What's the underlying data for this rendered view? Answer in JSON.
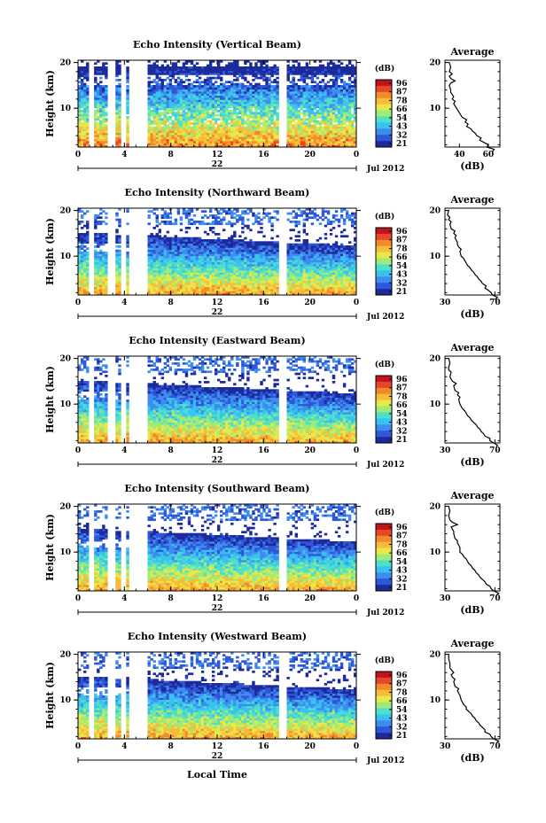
{
  "chart_data": {
    "type": "heatmap",
    "panels": [
      {
        "title": "Echo Intensity (Vertical Beam)",
        "colorbar_label": "(dB)",
        "colorbar_ticks": [
          "96",
          "87",
          "78",
          "66",
          "54",
          "43",
          "32",
          "21"
        ],
        "day_label": "22",
        "profile_title": "Average",
        "profile_xticks": [
          "40",
          "60"
        ],
        "profile_xrange": [
          30,
          68
        ],
        "profile": [
          [
            0.5,
            63
          ],
          [
            1,
            64
          ],
          [
            1.5,
            59
          ],
          [
            2,
            60
          ],
          [
            2.5,
            57
          ],
          [
            3,
            54
          ],
          [
            3.5,
            55
          ],
          [
            4,
            52
          ],
          [
            4.5,
            51
          ],
          [
            5,
            49
          ],
          [
            5.5,
            48
          ],
          [
            6,
            45
          ],
          [
            6.5,
            46
          ],
          [
            7,
            44
          ],
          [
            7.5,
            45
          ],
          [
            8,
            42
          ],
          [
            8.5,
            41
          ],
          [
            9,
            40
          ],
          [
            9.5,
            39
          ],
          [
            10,
            38
          ],
          [
            10.5,
            37
          ],
          [
            11,
            36
          ],
          [
            11.5,
            37
          ],
          [
            12,
            35
          ],
          [
            12.5,
            36
          ],
          [
            13,
            35
          ],
          [
            13.5,
            34
          ],
          [
            14,
            34
          ],
          [
            15,
            33
          ],
          [
            15.5,
            34
          ],
          [
            16,
            37
          ],
          [
            16.5,
            34
          ],
          [
            17,
            33
          ],
          [
            17.5,
            35
          ],
          [
            18,
            33
          ],
          [
            19,
            34
          ],
          [
            20,
            33
          ]
        ]
      },
      {
        "title": "Echo Intensity (Northward Beam)",
        "colorbar_label": "(dB)",
        "colorbar_ticks": [
          "96",
          "87",
          "78",
          "66",
          "54",
          "43",
          "32",
          "21"
        ],
        "day_label": "22",
        "profile_title": "Average",
        "profile_xticks": [
          "30",
          "70"
        ],
        "profile_xrange": [
          30,
          74
        ],
        "profile": [
          [
            0.5,
            70
          ],
          [
            1,
            72
          ],
          [
            1.5,
            68
          ],
          [
            2,
            67
          ],
          [
            2.5,
            65
          ],
          [
            3,
            62
          ],
          [
            3.5,
            63
          ],
          [
            4,
            60
          ],
          [
            4.5,
            59
          ],
          [
            5,
            57
          ],
          [
            5.5,
            56
          ],
          [
            6,
            54
          ],
          [
            6.5,
            53
          ],
          [
            7,
            51
          ],
          [
            7.5,
            50
          ],
          [
            8,
            48
          ],
          [
            8.5,
            47
          ],
          [
            9,
            46
          ],
          [
            9.5,
            45
          ],
          [
            10,
            43
          ],
          [
            11,
            42
          ],
          [
            11.5,
            43
          ],
          [
            12,
            41
          ],
          [
            12.5,
            40
          ],
          [
            13,
            40
          ],
          [
            14,
            38
          ],
          [
            14.5,
            39
          ],
          [
            15,
            37
          ],
          [
            15.5,
            38
          ],
          [
            16,
            35
          ],
          [
            17,
            34
          ],
          [
            17.5,
            35
          ],
          [
            18,
            33
          ],
          [
            18.5,
            34
          ],
          [
            19,
            32
          ],
          [
            20,
            33
          ]
        ]
      },
      {
        "title": "Echo Intensity (Eastward Beam)",
        "colorbar_label": "(dB)",
        "colorbar_ticks": [
          "96",
          "87",
          "78",
          "66",
          "54",
          "43",
          "32",
          "21"
        ],
        "day_label": "22",
        "profile_title": "Average",
        "profile_xticks": [
          "30",
          "70"
        ],
        "profile_xrange": [
          30,
          74
        ],
        "profile": [
          [
            0.5,
            71
          ],
          [
            1,
            72
          ],
          [
            1.5,
            69
          ],
          [
            2,
            66
          ],
          [
            2.5,
            66
          ],
          [
            3,
            62
          ],
          [
            3.5,
            61
          ],
          [
            4,
            59
          ],
          [
            4.5,
            58
          ],
          [
            5,
            56
          ],
          [
            5.5,
            55
          ],
          [
            6,
            53
          ],
          [
            6.5,
            51
          ],
          [
            7,
            50
          ],
          [
            7.5,
            48
          ],
          [
            8,
            47
          ],
          [
            8.5,
            46
          ],
          [
            9,
            44
          ],
          [
            9.5,
            43
          ],
          [
            10,
            42
          ],
          [
            11,
            41
          ],
          [
            11.5,
            42
          ],
          [
            12,
            40
          ],
          [
            12.5,
            41
          ],
          [
            13,
            38
          ],
          [
            14,
            37
          ],
          [
            14.5,
            39
          ],
          [
            15,
            36
          ],
          [
            15.5,
            35
          ],
          [
            16,
            34
          ],
          [
            17,
            35
          ],
          [
            17.5,
            33
          ],
          [
            18,
            33
          ],
          [
            19,
            34
          ],
          [
            20,
            33
          ]
        ]
      },
      {
        "title": "Echo Intensity (Southward Beam)",
        "colorbar_label": "(dB)",
        "colorbar_ticks": [
          "96",
          "87",
          "78",
          "66",
          "54",
          "43",
          "32",
          "21"
        ],
        "day_label": "22",
        "profile_title": "Average",
        "profile_xticks": [
          "30",
          "70"
        ],
        "profile_xrange": [
          30,
          74
        ],
        "profile": [
          [
            0.5,
            71
          ],
          [
            1,
            73
          ],
          [
            1.5,
            69
          ],
          [
            2,
            67
          ],
          [
            2.5,
            66
          ],
          [
            3,
            63
          ],
          [
            3.5,
            62
          ],
          [
            4,
            60
          ],
          [
            4.5,
            58
          ],
          [
            5,
            57
          ],
          [
            5.5,
            55
          ],
          [
            6,
            54
          ],
          [
            6.5,
            52
          ],
          [
            7,
            51
          ],
          [
            7.5,
            49
          ],
          [
            8,
            48
          ],
          [
            8.5,
            47
          ],
          [
            9,
            45
          ],
          [
            9.5,
            44
          ],
          [
            10,
            42
          ],
          [
            11,
            42
          ],
          [
            11.5,
            41
          ],
          [
            12,
            40
          ],
          [
            12.5,
            40
          ],
          [
            13,
            38
          ],
          [
            14,
            37
          ],
          [
            14.5,
            37
          ],
          [
            15,
            36
          ],
          [
            15.5,
            35
          ],
          [
            16,
            40
          ],
          [
            16.5,
            36
          ],
          [
            17,
            34
          ],
          [
            18,
            33
          ],
          [
            19,
            34
          ],
          [
            20,
            33
          ]
        ]
      },
      {
        "title": "Echo Intensity (Westward Beam)",
        "colorbar_label": "(dB)",
        "colorbar_ticks": [
          "96",
          "87",
          "78",
          "66",
          "54",
          "43",
          "32",
          "21"
        ],
        "day_label": "22",
        "profile_title": "Average",
        "profile_xticks": [
          "30",
          "70"
        ],
        "profile_xrange": [
          30,
          74
        ],
        "profile": [
          [
            0.5,
            71
          ],
          [
            1,
            73
          ],
          [
            1.5,
            69
          ],
          [
            2,
            67
          ],
          [
            2.5,
            66
          ],
          [
            3,
            62
          ],
          [
            3.5,
            62
          ],
          [
            4,
            60
          ],
          [
            4.5,
            58
          ],
          [
            5,
            57
          ],
          [
            5.5,
            55
          ],
          [
            6,
            54
          ],
          [
            6.5,
            52
          ],
          [
            7,
            51
          ],
          [
            7.5,
            49
          ],
          [
            8,
            47
          ],
          [
            8.5,
            47
          ],
          [
            9,
            45
          ],
          [
            9.5,
            44
          ],
          [
            10,
            43
          ],
          [
            11,
            42
          ],
          [
            11.5,
            41
          ],
          [
            12,
            40
          ],
          [
            12.5,
            41
          ],
          [
            13,
            38
          ],
          [
            14,
            37
          ],
          [
            14.5,
            38
          ],
          [
            15,
            36
          ],
          [
            15.5,
            35
          ],
          [
            16,
            37
          ],
          [
            17,
            34
          ],
          [
            18,
            34
          ],
          [
            19,
            33
          ],
          [
            20,
            33
          ]
        ]
      }
    ],
    "x_ticks": [
      "0",
      "4",
      "8",
      "12",
      "16",
      "20",
      "0"
    ],
    "x_range_hours": [
      0,
      24
    ],
    "y_ticks": [
      "20",
      "10"
    ],
    "y_range_km": [
      1.5,
      20.5
    ],
    "ylabel": "Height (km)",
    "profile_xlabel": "(dB)",
    "month_label": "Jul 2012",
    "xlabel": "Local Time",
    "colormap": [
      "#1c2a9c",
      "#2f57d8",
      "#3f8cf0",
      "#39c2f0",
      "#4ee0c8",
      "#9eeb7a",
      "#e8e84a",
      "#f6bc3a",
      "#f08a2a",
      "#e8462a",
      "#c0141e"
    ],
    "data_gaps_hours": [
      [
        0.9,
        1.3
      ],
      [
        2.6,
        3.2
      ],
      [
        3.6,
        4.1
      ],
      [
        4.5,
        6.0
      ],
      [
        17.4,
        17.9
      ]
    ]
  }
}
